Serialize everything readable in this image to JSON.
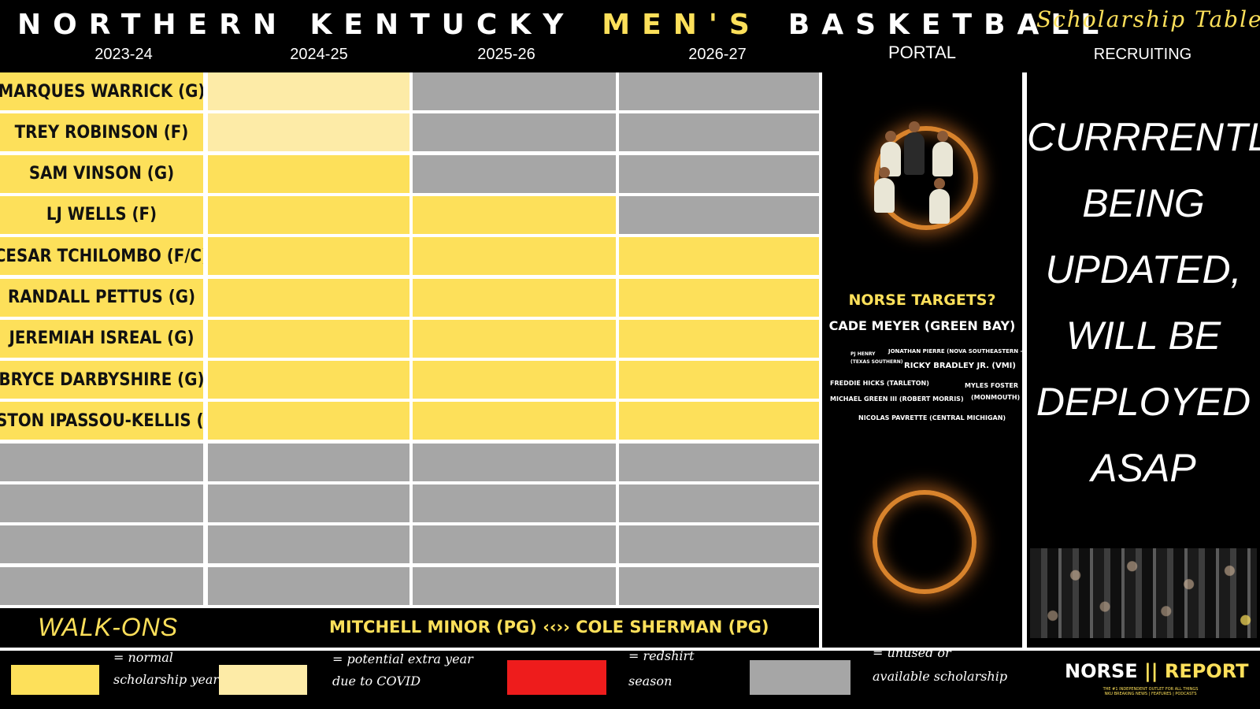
{
  "header": {
    "title_part1": "NORTHERN KENTUCKY",
    "title_part2": "MEN'S",
    "title_part3": "BASKETBALL",
    "subtitle": "Scholarship Table",
    "columns": [
      "2023-24",
      "2024-25",
      "2025-26",
      "2026-27",
      "PORTAL",
      "RECRUITING"
    ]
  },
  "roster": [
    {
      "name": "MARQUES WARRICK (G)",
      "years": [
        "cream",
        "gray",
        "gray"
      ]
    },
    {
      "name": "TREY ROBINSON (F)",
      "years": [
        "cream",
        "gray",
        "gray"
      ]
    },
    {
      "name": "SAM VINSON (G)",
      "years": [
        "yellow",
        "gray",
        "gray"
      ]
    },
    {
      "name": "LJ WELLS (F)",
      "years": [
        "yellow",
        "yellow",
        "gray"
      ]
    },
    {
      "name": "CESAR TCHILOMBO (F/C)",
      "years": [
        "yellow",
        "yellow",
        "yellow"
      ]
    },
    {
      "name": "RANDALL PETTUS (G)",
      "years": [
        "yellow",
        "yellow",
        "yellow"
      ]
    },
    {
      "name": "JEREMIAH ISREAL (G)",
      "years": [
        "yellow",
        "yellow",
        "yellow"
      ]
    },
    {
      "name": "BRYCE DARBYSHIRE (G)",
      "years": [
        "yellow",
        "yellow",
        "yellow"
      ]
    },
    {
      "name": "FISTON IPASSOU-KELLIS (G)",
      "years": [
        "yellow",
        "yellow",
        "yellow"
      ]
    },
    {
      "name": "",
      "years": [
        "gray",
        "gray",
        "gray"
      ]
    },
    {
      "name": "",
      "years": [
        "gray",
        "gray",
        "gray"
      ]
    },
    {
      "name": "",
      "years": [
        "gray",
        "gray",
        "gray"
      ]
    },
    {
      "name": "",
      "years": [
        "gray",
        "gray",
        "gray"
      ]
    }
  ],
  "walkons": {
    "label": "WALK-ONS",
    "names": "MITCHELL MINOR (PG) ‹‹›› COLE SHERMAN (PG)"
  },
  "portal": {
    "targets_title": "NORSE TARGETS?",
    "main_target": "CADE MEYER (GREEN BAY)",
    "small_targets": {
      "pj_henry": "PJ HENRY",
      "pj_henry_school": "(TEXAS SOUTHERN)",
      "jonathan_pierre": "JONATHAN PIERRE (NOVA SOUTHEASTERN - DII)",
      "ricky_bradley": "RICKY BRADLEY JR. (VMI)",
      "freddie_hicks": "FREDDIE HICKS (TARLETON)",
      "myles_foster": "MYLES FOSTER",
      "myles_foster_school": "(MONMOUTH)",
      "michael_green": "MICHAEL GREEN III (ROBERT MORRIS)",
      "nicolas_pavrette": "NICOLAS PAVRETTE (CENTRAL MICHIGAN)"
    }
  },
  "recruiting": {
    "lines": [
      "CURRRENTLY",
      "BEING",
      "UPDATED,",
      "WILL BE",
      "DEPLOYED",
      "ASAP"
    ]
  },
  "legend": {
    "normal_1": "= normal",
    "normal_2": "scholarship year",
    "covid_1": "= potential extra year",
    "covid_2": "due to COVID",
    "redshirt_1": "= redshirt",
    "redshirt_2": "season",
    "unused_1": "= unused or",
    "unused_2": "available scholarship"
  },
  "logo": {
    "part1": "NORSE",
    "separator": "||",
    "part2": "REPORT",
    "tagline": "THE #1 INDEPENDENT OUTLET FOR ALL THINGS NKU BREAKING NEWS | FEATURES | PODCASTS"
  },
  "colors": {
    "yellow": "#fde05a",
    "cream": "#fdeba7",
    "gray": "#a6a6a6",
    "red": "#ee1c1c",
    "background": "#000000"
  }
}
